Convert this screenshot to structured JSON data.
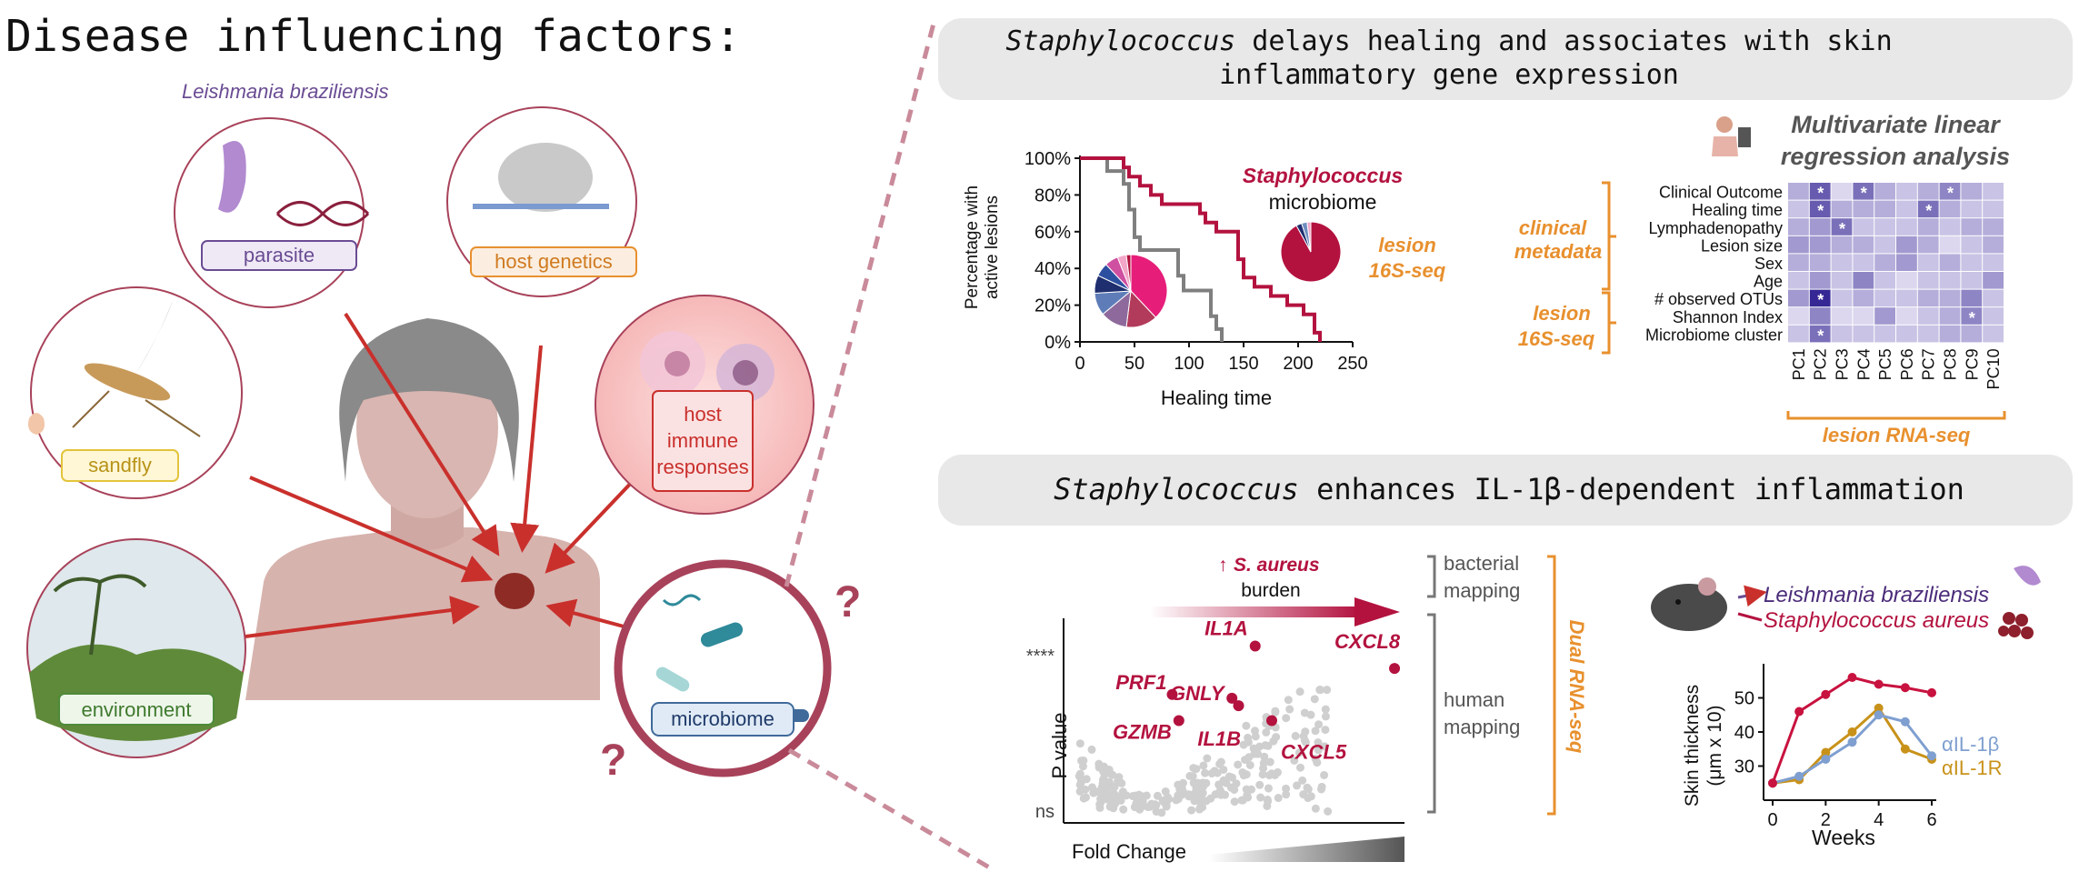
{
  "main_title": "Disease influencing factors:",
  "left": {
    "pathogen_label": "Leishmania braziliensis",
    "factors": {
      "parasite": "parasite",
      "host_genetics": "host genetics",
      "sandfly": "sandfly",
      "immune_line1": "host",
      "immune_line2": "immune",
      "immune_line3": "responses",
      "environment": "environment",
      "microbiome": "microbiome"
    },
    "question_mark": "?"
  },
  "top_panel": {
    "banner_pre": "Staphylococcus",
    "banner_post": " delays healing and associates with skin",
    "banner_line2": "inflammatory gene expression",
    "survival": {
      "ylabel_line1": "Percentage with",
      "ylabel_line2": "active lesions",
      "xlabel": "Healing time",
      "staph_label": "Staphylococcus",
      "microbiome_label": "microbiome",
      "lesion_label_1": "lesion",
      "lesion_label_2": "16S-seq"
    },
    "regression": {
      "title_line1": "Multivariate linear",
      "title_line2": "regression analysis",
      "group_clinical_1": "clinical",
      "group_clinical_2": "metadata",
      "group_lesion_1": "lesion",
      "group_lesion_2": "16S-seq",
      "x_group": "lesion RNA-seq",
      "star": "*"
    }
  },
  "bottom_panel": {
    "banner_pre": "Staphylococcus",
    "banner_post": " enhances IL-1β-dependent inflammation",
    "volcano": {
      "arrow_up": "↑",
      "aureus": "S. aureus",
      "burden": "burden",
      "ylabel": "P value",
      "ytick_top": "****",
      "ytick_bottom": "ns",
      "xlabel": "Fold Change",
      "bacterial_1": "bacterial",
      "bacterial_2": "mapping",
      "human_1": "human",
      "human_2": "mapping",
      "dual": "Dual RNA-seq",
      "genes": [
        "IL1A",
        "CXCL8",
        "PRF1",
        "GNLY",
        "GZMB",
        "IL1B",
        "CXCL5"
      ]
    },
    "mouse": {
      "leish": "Leishmania braziliensis",
      "staph": "Staphylococcus aureus",
      "ylabel_1": "Skin thickness",
      "ylabel_2": "(μm x 10)",
      "xlabel": "Weeks",
      "legend_il1b": "αIL-1β",
      "legend_il1r": "αIL-1R"
    }
  },
  "colors": {
    "crimson": "#b3123f",
    "orange": "#e8902e",
    "gray": "#7f7f7f",
    "purple": "#6a4c93",
    "heatmap_dark": "#2b1d8f",
    "il1b_blue": "#7f9fd0",
    "il1r_gold": "#c8921a",
    "banner_bg": "#e8e8e8"
  },
  "chart_data": [
    {
      "type": "line",
      "chart": "survival",
      "xlim": [
        0,
        250
      ],
      "ylim": [
        0,
        100
      ],
      "x_ticks": [
        "0",
        "50",
        "100",
        "150",
        "200",
        "250"
      ],
      "y_ticks": [
        "0%",
        "20%",
        "40%",
        "60%",
        "80%",
        "100%"
      ],
      "series": [
        {
          "color": "#7f7f7f",
          "x": [
            0,
            20,
            25,
            35,
            40,
            45,
            50,
            55,
            90,
            95,
            120,
            125,
            130
          ],
          "y": [
            100,
            100,
            93,
            93,
            86,
            72,
            57,
            50,
            36,
            28,
            14,
            7,
            0
          ]
        },
        {
          "name": "Staphylococcus",
          "color": "#b3123f",
          "x": [
            0,
            40,
            45,
            55,
            65,
            75,
            90,
            110,
            115,
            125,
            145,
            150,
            160,
            175,
            190,
            205,
            215,
            220
          ],
          "y": [
            100,
            95,
            90,
            85,
            80,
            75,
            75,
            70,
            65,
            60,
            45,
            35,
            30,
            25,
            20,
            15,
            5,
            0
          ]
        }
      ]
    },
    {
      "type": "pie",
      "chart": "healed-microbiome",
      "values": [
        38,
        14,
        12,
        10,
        8,
        6,
        6,
        4,
        2
      ],
      "colors": [
        "#e61e7a",
        "#b23a5a",
        "#8e6a9c",
        "#5e7db8",
        "#1f2e6e",
        "#2c4fa0",
        "#cf4fa0",
        "#f2a6c8",
        "#b3123f"
      ]
    },
    {
      "type": "pie",
      "chart": "staph-microbiome",
      "values": [
        92,
        3,
        3,
        2
      ],
      "colors": [
        "#b3123f",
        "#1f2e6e",
        "#6f8fc0",
        "#f2a6c8"
      ]
    },
    {
      "type": "heatmap",
      "chart": "regression",
      "rows": [
        "Clinical Outcome",
        "Healing time",
        "Lymphadenopathy",
        "Lesion size",
        "Sex",
        "Age",
        "# observed OTUs",
        "Shannon Index",
        "Microbiome cluster"
      ],
      "cols": [
        "PC1",
        "PC2",
        "PC3",
        "PC4",
        "PC5",
        "PC6",
        "PC7",
        "PC8",
        "PC9",
        "PC10"
      ],
      "values": [
        [
          0.3,
          0.7,
          0.1,
          0.6,
          0.3,
          0.2,
          0.3,
          0.5,
          0.3,
          0.2
        ],
        [
          0.2,
          0.7,
          0.3,
          0.3,
          0.3,
          0.2,
          0.6,
          0.3,
          0.2,
          0.2
        ],
        [
          0.3,
          0.4,
          0.6,
          0.2,
          0.2,
          0.2,
          0.3,
          0.2,
          0.3,
          0.3
        ],
        [
          0.4,
          0.4,
          0.3,
          0.3,
          0.2,
          0.4,
          0.3,
          0.1,
          0.2,
          0.3
        ],
        [
          0.3,
          0.3,
          0.2,
          0.2,
          0.3,
          0.4,
          0.2,
          0.3,
          0.2,
          0.2
        ],
        [
          0.2,
          0.4,
          0.2,
          0.5,
          0.2,
          0.1,
          0.2,
          0.2,
          0.2,
          0.4
        ],
        [
          0.4,
          0.95,
          0.2,
          0.3,
          0.2,
          0.2,
          0.3,
          0.3,
          0.5,
          0.2
        ],
        [
          0.1,
          0.5,
          0.1,
          0.1,
          0.4,
          0.1,
          0.2,
          0.3,
          0.5,
          0.2
        ],
        [
          0.2,
          0.6,
          0.2,
          0.2,
          0.2,
          0.2,
          0.2,
          0.3,
          0.3,
          0.2
        ]
      ],
      "stars": [
        [
          0,
          1
        ],
        [
          0,
          3
        ],
        [
          0,
          7
        ],
        [
          1,
          1
        ],
        [
          1,
          6
        ],
        [
          2,
          2
        ],
        [
          6,
          1
        ],
        [
          7,
          8
        ],
        [
          8,
          1
        ]
      ]
    },
    {
      "type": "scatter",
      "chart": "volcano",
      "highlighted": [
        {
          "gene": "IL1A",
          "fold_change": 0.55,
          "p": 0.9
        },
        {
          "gene": "CXCL8",
          "fold_change": 0.97,
          "p": 0.78
        },
        {
          "gene": "PRF1",
          "fold_change": 0.3,
          "p": 0.64
        },
        {
          "gene": "GNLY",
          "fold_change": 0.5,
          "p": 0.58
        },
        {
          "gene": "GZMB",
          "fold_change": 0.32,
          "p": 0.5
        },
        {
          "gene": "IL1B",
          "fold_change": 0.48,
          "p": 0.62
        },
        {
          "gene": "CXCL5",
          "fold_change": 0.6,
          "p": 0.5
        }
      ]
    },
    {
      "type": "line",
      "chart": "skin-thickness",
      "xlim": [
        0,
        6
      ],
      "ylim": [
        20,
        60
      ],
      "x_ticks": [
        "0",
        "2",
        "4",
        "6"
      ],
      "y_ticks": [
        "30",
        "40",
        "50"
      ],
      "series": [
        {
          "color": "#c8123f",
          "x": [
            0,
            1,
            2,
            3,
            4,
            5,
            6
          ],
          "y": [
            25,
            46,
            51,
            56,
            54,
            53,
            51.5
          ]
        },
        {
          "name": "αIL-1β",
          "color": "#7f9fd0",
          "x": [
            0,
            1,
            2,
            3,
            4,
            5,
            6
          ],
          "y": [
            25,
            27,
            32,
            37,
            45,
            43,
            33
          ]
        },
        {
          "name": "αIL-1R",
          "color": "#c8921a",
          "x": [
            0,
            1,
            2,
            3,
            4,
            5,
            6
          ],
          "y": [
            25,
            26,
            34,
            40,
            47,
            35,
            32
          ]
        }
      ]
    }
  ]
}
